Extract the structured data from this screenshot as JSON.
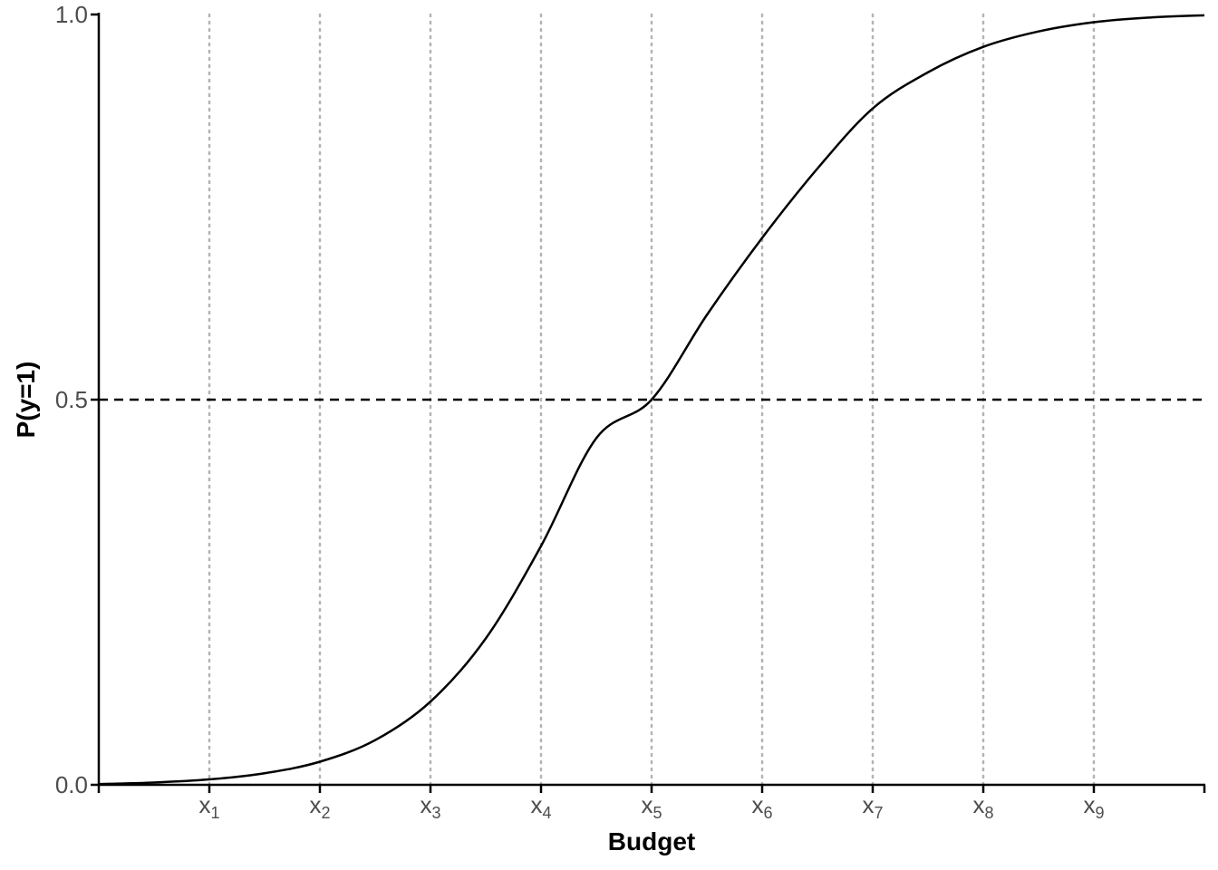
{
  "chart_data": {
    "type": "line",
    "xlabel": "Budget",
    "ylabel": "P(y=1)",
    "xlim": [
      0,
      10
    ],
    "ylim": [
      0,
      1
    ],
    "x_ticks": [
      {
        "value": 1,
        "base": "x",
        "sub": "1"
      },
      {
        "value": 2,
        "base": "x",
        "sub": "2"
      },
      {
        "value": 3,
        "base": "x",
        "sub": "3"
      },
      {
        "value": 4,
        "base": "x",
        "sub": "4"
      },
      {
        "value": 5,
        "base": "x",
        "sub": "5"
      },
      {
        "value": 6,
        "base": "x",
        "sub": "6"
      },
      {
        "value": 7,
        "base": "x",
        "sub": "7"
      },
      {
        "value": 8,
        "base": "x",
        "sub": "8"
      },
      {
        "value": 9,
        "base": "x",
        "sub": "9"
      }
    ],
    "y_ticks": [
      {
        "value": 0,
        "label": "0.0"
      },
      {
        "value": 0.5,
        "label": "0.5"
      },
      {
        "value": 1,
        "label": "1.0"
      }
    ],
    "series": [
      {
        "x": [
          0,
          0.5,
          1,
          1.5,
          2,
          2.5,
          3,
          3.5,
          4,
          4.5,
          5,
          5.5,
          6,
          6.5,
          7,
          7.5,
          8,
          8.5,
          9,
          9.5,
          10
        ],
        "y": [
          0.001,
          0.003,
          0.007,
          0.015,
          0.03,
          0.058,
          0.108,
          0.19,
          0.31,
          0.45,
          0.5,
          0.61,
          0.71,
          0.8,
          0.878,
          0.925,
          0.958,
          0.978,
          0.99,
          0.996,
          0.999
        ],
        "color": "#000000"
      }
    ],
    "reference_line": {
      "y": 0.5,
      "style": "dashed",
      "color": "#000000"
    },
    "vertical_gridlines": {
      "style": "dotted",
      "color": "#b3b3b3"
    },
    "grid": false,
    "legend": "none"
  }
}
